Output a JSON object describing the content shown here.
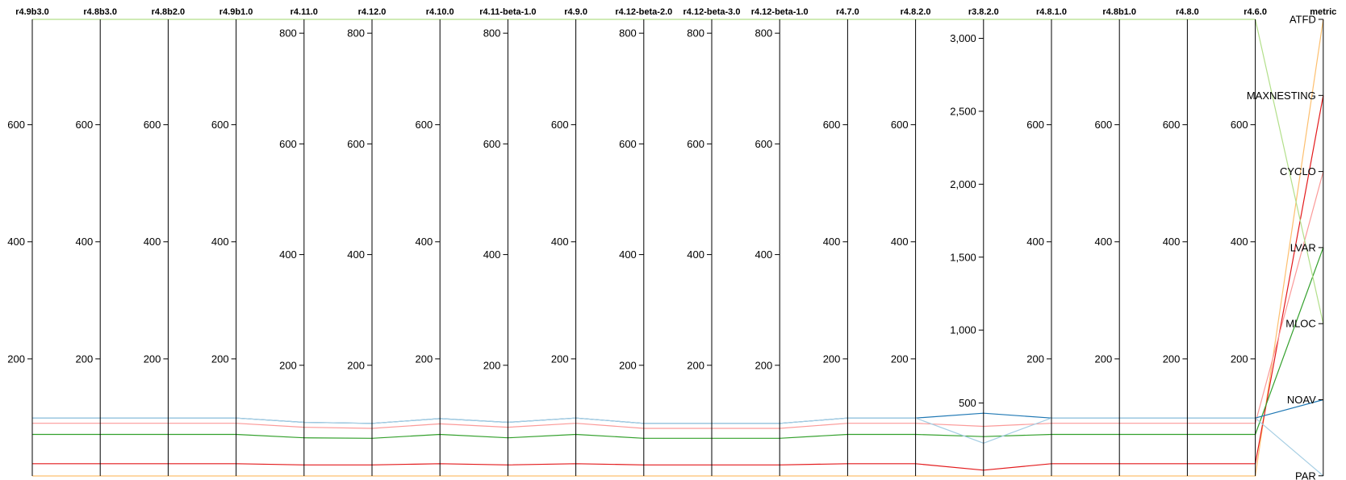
{
  "chart_data": {
    "type": "parallel-coordinates",
    "axes": [
      {
        "name": "r4.9b3.0",
        "min": 0,
        "max": 780,
        "ticks": [
          200,
          400,
          600
        ]
      },
      {
        "name": "r4.8b3.0",
        "min": 0,
        "max": 780,
        "ticks": [
          200,
          400,
          600
        ]
      },
      {
        "name": "r4.8b2.0",
        "min": 0,
        "max": 780,
        "ticks": [
          200,
          400,
          600
        ]
      },
      {
        "name": "r4.9b1.0",
        "min": 0,
        "max": 780,
        "ticks": [
          200,
          400,
          600
        ]
      },
      {
        "name": "r4.11.0",
        "min": 0,
        "max": 825,
        "ticks": [
          200,
          400,
          600,
          800
        ]
      },
      {
        "name": "r4.12.0",
        "min": 0,
        "max": 825,
        "ticks": [
          200,
          400,
          600,
          800
        ]
      },
      {
        "name": "r4.10.0",
        "min": 0,
        "max": 780,
        "ticks": [
          200,
          400,
          600
        ]
      },
      {
        "name": "r4.11-beta-1.0",
        "min": 0,
        "max": 825,
        "ticks": [
          200,
          400,
          600,
          800
        ]
      },
      {
        "name": "r4.9.0",
        "min": 0,
        "max": 780,
        "ticks": [
          200,
          400,
          600
        ]
      },
      {
        "name": "r4.12-beta-2.0",
        "min": 0,
        "max": 825,
        "ticks": [
          200,
          400,
          600,
          800
        ]
      },
      {
        "name": "r4.12-beta-3.0",
        "min": 0,
        "max": 825,
        "ticks": [
          200,
          400,
          600,
          800
        ]
      },
      {
        "name": "r4.12-beta-1.0",
        "min": 0,
        "max": 825,
        "ticks": [
          200,
          400,
          600,
          800
        ]
      },
      {
        "name": "r4.7.0",
        "min": 0,
        "max": 780,
        "ticks": [
          200,
          400,
          600
        ]
      },
      {
        "name": "r4.8.2.0",
        "min": 0,
        "max": 780,
        "ticks": [
          200,
          400,
          600
        ]
      },
      {
        "name": "r3.8.2.0",
        "min": 0,
        "max": 3130,
        "ticks": [
          500,
          1000,
          1500,
          2000,
          2500,
          3000
        ]
      },
      {
        "name": "r4.8.1.0",
        "min": 0,
        "max": 780,
        "ticks": [
          200,
          400,
          600
        ]
      },
      {
        "name": "r4.8b1.0",
        "min": 0,
        "max": 780,
        "ticks": [
          200,
          400,
          600
        ]
      },
      {
        "name": "r4.8.0",
        "min": 0,
        "max": 780,
        "ticks": [
          200,
          400,
          600
        ]
      },
      {
        "name": "r4.6.0",
        "min": 0,
        "max": 780,
        "ticks": [
          200,
          400,
          600
        ]
      }
    ],
    "metric_axis": {
      "name": "metric",
      "categories": [
        "ATFD",
        "MAXNESTING",
        "CYCLO",
        "LVAR",
        "MLOC",
        "NOAV",
        "PAR"
      ]
    },
    "series": [
      {
        "metric": "ATFD",
        "color": "#fdbf6f",
        "values": [
          0,
          0,
          0,
          0,
          0,
          0,
          0,
          0,
          0,
          0,
          0,
          0,
          0,
          0,
          0,
          0,
          0,
          0,
          0
        ]
      },
      {
        "metric": "MAXNESTING",
        "color": "#e31a1c",
        "values": [
          21,
          21,
          21,
          21,
          20,
          20,
          21,
          20,
          21,
          20,
          20,
          20,
          21,
          21,
          40,
          21,
          21,
          21,
          21
        ]
      },
      {
        "metric": "CYCLO",
        "color": "#fb9a99",
        "values": [
          90,
          90,
          90,
          90,
          88,
          86,
          89,
          88,
          90,
          86,
          86,
          86,
          90,
          90,
          340,
          90,
          90,
          90,
          90
        ]
      },
      {
        "metric": "LVAR",
        "color": "#33a02c",
        "values": [
          71,
          71,
          71,
          71,
          69,
          68,
          71,
          69,
          71,
          68,
          68,
          68,
          71,
          71,
          270,
          71,
          71,
          71,
          71
        ]
      },
      {
        "metric": "MLOC",
        "color": "#b2df8a",
        "values": [
          780,
          780,
          780,
          780,
          825,
          825,
          780,
          825,
          780,
          825,
          825,
          825,
          780,
          780,
          3130,
          780,
          780,
          780,
          780
        ]
      },
      {
        "metric": "NOAV",
        "color": "#1f78b4",
        "values": [
          99,
          99,
          99,
          99,
          97,
          95,
          98,
          97,
          99,
          95,
          95,
          95,
          99,
          99,
          430,
          99,
          99,
          99,
          99
        ]
      },
      {
        "metric": "PAR",
        "color": "#a6cee3",
        "values": [
          99,
          99,
          99,
          99,
          97,
          95,
          98,
          97,
          99,
          95,
          95,
          95,
          99,
          99,
          225,
          99,
          99,
          99,
          99
        ]
      }
    ]
  }
}
